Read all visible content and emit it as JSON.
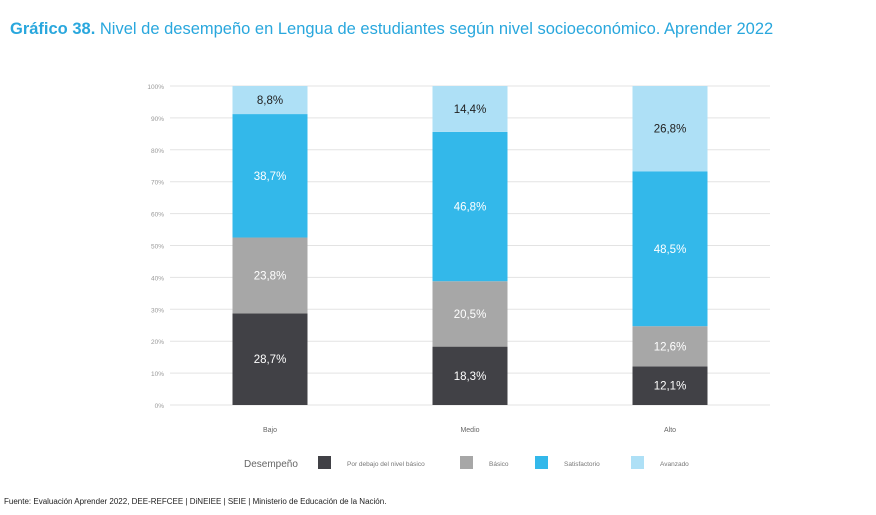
{
  "title": {
    "prefix": "Gráfico 38.",
    "text": "Nivel de desempeño en Lengua de estudiantes según nivel socioeconómico. Aprender 2022"
  },
  "source": "Fuente: Evaluación Aprender 2022, DEE-REFCEE | DiNEIEE | SEIE | Ministerio de Educación de la Nación.",
  "legend": {
    "title": "Desempeño"
  },
  "chart_data": {
    "type": "bar",
    "stacked": true,
    "categories": [
      "Bajo",
      "Medio",
      "Alto"
    ],
    "ylim": [
      0,
      100
    ],
    "yticks": [
      "0%",
      "10%",
      "20%",
      "30%",
      "40%",
      "50%",
      "60%",
      "70%",
      "80%",
      "90%",
      "100%"
    ],
    "grid": true,
    "legend_position": "bottom",
    "series": [
      {
        "name": "Por debajo del nivel básico",
        "values": [
          28.7,
          18.3,
          12.1
        ],
        "labels": [
          "28,7%",
          "18,3%",
          "12,1%"
        ],
        "color": "#414146",
        "label_color": "#ffffff"
      },
      {
        "name": "Básico",
        "values": [
          23.8,
          20.5,
          12.6
        ],
        "labels": [
          "23,8%",
          "20,5%",
          "12,6%"
        ],
        "color": "#a7a7a7",
        "label_color": "#ffffff"
      },
      {
        "name": "Satisfactorio",
        "values": [
          38.7,
          46.8,
          48.5
        ],
        "labels": [
          "38,7%",
          "46,8%",
          "48,5%"
        ],
        "color": "#33b8ea",
        "label_color": "#ffffff"
      },
      {
        "name": "Avanzado",
        "values": [
          8.8,
          14.4,
          26.8
        ],
        "labels": [
          "8,8%",
          "14,4%",
          "26,8%"
        ],
        "color": "#aee0f6",
        "label_color": "#222222"
      }
    ]
  }
}
